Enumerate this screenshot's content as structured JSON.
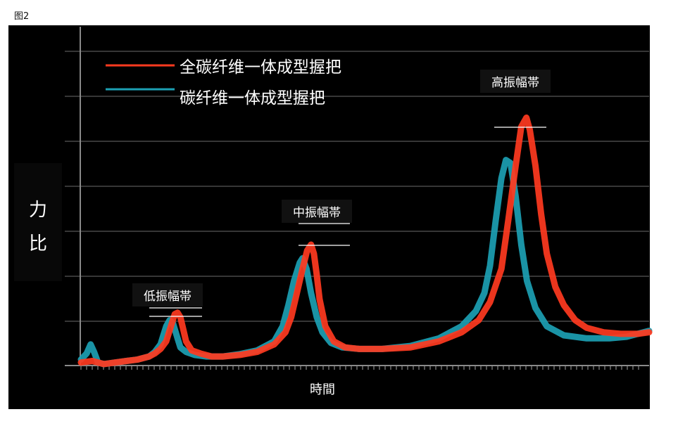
{
  "figure_label": "图2",
  "chart_data": {
    "type": "line",
    "title": "",
    "xlabel": "時間",
    "ylabel": [
      "力",
      "比"
    ],
    "x_range": [
      0,
      100
    ],
    "y_range": [
      0,
      100
    ],
    "grid": "horizontal",
    "legend_position": "top-left",
    "series": [
      {
        "name": "全碳纤维一体成型握把",
        "color": "#ff3a1f",
        "points": [
          [
            0,
            1
          ],
          [
            2,
            1.5
          ],
          [
            4,
            0.5
          ],
          [
            6,
            1
          ],
          [
            8,
            1.5
          ],
          [
            10,
            2
          ],
          [
            12,
            3
          ],
          [
            13,
            4
          ],
          [
            14,
            5.5
          ],
          [
            15,
            8
          ],
          [
            15.5,
            11
          ],
          [
            16,
            14
          ],
          [
            16.5,
            17
          ],
          [
            17,
            17.5
          ],
          [
            17.5,
            16
          ],
          [
            18,
            12
          ],
          [
            18.5,
            8
          ],
          [
            19.5,
            5
          ],
          [
            21,
            4
          ],
          [
            23,
            3
          ],
          [
            25,
            3
          ],
          [
            28,
            3.5
          ],
          [
            31,
            4.5
          ],
          [
            34,
            7
          ],
          [
            36,
            11
          ],
          [
            37,
            16
          ],
          [
            38,
            24
          ],
          [
            39,
            32
          ],
          [
            39.8,
            38
          ],
          [
            40.5,
            40
          ],
          [
            41,
            37
          ],
          [
            41.5,
            30
          ],
          [
            42,
            22
          ],
          [
            43,
            13
          ],
          [
            44.5,
            8
          ],
          [
            46.5,
            6
          ],
          [
            49,
            5.5
          ],
          [
            53,
            5.5
          ],
          [
            58,
            6
          ],
          [
            63,
            8
          ],
          [
            67,
            11
          ],
          [
            70,
            15
          ],
          [
            72,
            21
          ],
          [
            74,
            32
          ],
          [
            75.2,
            48
          ],
          [
            76.5,
            66
          ],
          [
            77.5,
            79
          ],
          [
            78.4,
            82
          ],
          [
            79,
            78
          ],
          [
            80,
            66
          ],
          [
            81,
            50
          ],
          [
            82,
            37
          ],
          [
            83.5,
            26
          ],
          [
            85,
            20
          ],
          [
            87,
            15
          ],
          [
            89,
            12.5
          ],
          [
            92,
            11
          ],
          [
            95,
            10.5
          ],
          [
            98,
            10.5
          ],
          [
            100,
            11
          ]
        ]
      },
      {
        "name": "碳纤维一体成型握把",
        "color": "#1ca0b3",
        "points": [
          [
            0,
            2
          ],
          [
            1,
            4
          ],
          [
            1.7,
            7
          ],
          [
            2.3,
            4.5
          ],
          [
            3,
            1
          ],
          [
            4,
            0.5
          ],
          [
            6,
            1
          ],
          [
            8,
            1.5
          ],
          [
            10,
            2
          ],
          [
            12,
            3
          ],
          [
            13,
            4.5
          ],
          [
            14,
            7
          ],
          [
            14.5,
            10
          ],
          [
            15,
            13
          ],
          [
            15.6,
            15
          ],
          [
            16.2,
            14
          ],
          [
            17,
            9
          ],
          [
            17.5,
            6
          ],
          [
            18.5,
            4.5
          ],
          [
            20,
            3.5
          ],
          [
            22,
            3
          ],
          [
            25,
            3
          ],
          [
            28,
            3.8
          ],
          [
            31,
            5
          ],
          [
            34,
            8
          ],
          [
            35.5,
            13
          ],
          [
            36.5,
            20
          ],
          [
            37.5,
            28
          ],
          [
            38.5,
            34
          ],
          [
            39,
            35.5
          ],
          [
            39.7,
            32
          ],
          [
            40.5,
            24
          ],
          [
            41.5,
            16
          ],
          [
            42.5,
            11
          ],
          [
            44,
            7.5
          ],
          [
            46,
            6
          ],
          [
            49,
            5.5
          ],
          [
            53,
            5.5
          ],
          [
            58,
            6.5
          ],
          [
            63,
            9
          ],
          [
            67,
            13
          ],
          [
            69.5,
            18
          ],
          [
            71,
            24
          ],
          [
            72,
            33
          ],
          [
            73,
            48
          ],
          [
            74,
            62
          ],
          [
            74.8,
            68
          ],
          [
            75.6,
            67
          ],
          [
            76.5,
            56
          ],
          [
            77.5,
            40
          ],
          [
            78.5,
            28
          ],
          [
            80,
            19
          ],
          [
            82,
            13
          ],
          [
            85,
            10
          ],
          [
            89,
            9
          ],
          [
            93,
            9
          ],
          [
            96,
            9.5
          ],
          [
            100,
            11.5
          ]
        ]
      }
    ],
    "annotations": [
      {
        "text": "低振幅帯",
        "x": 16
      },
      {
        "text": "中振幅帯",
        "x": 40
      },
      {
        "text": "高振幅帯",
        "x": 77
      }
    ]
  }
}
